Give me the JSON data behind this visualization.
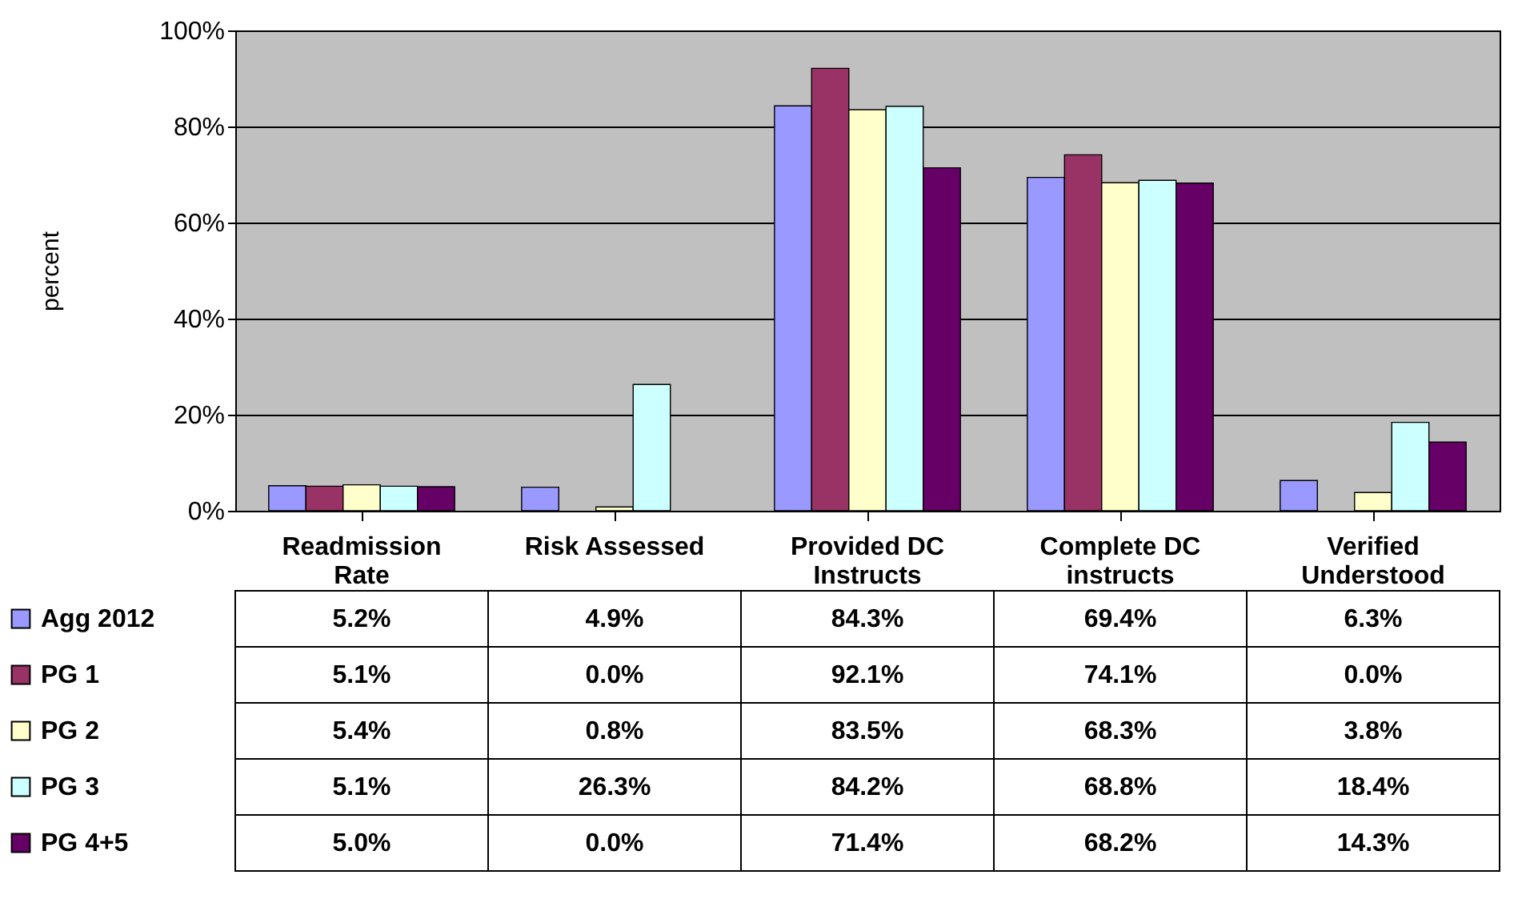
{
  "chart_data": {
    "type": "bar",
    "ylabel": "percent",
    "categories": [
      "Readmission Rate",
      "Risk Assessed",
      "Provided DC Instructs",
      "Complete DC instructs",
      "Verified Understood"
    ],
    "series": [
      {
        "name": "Agg 2012",
        "color": "#9999ff",
        "values": [
          5.2,
          4.9,
          84.3,
          69.4,
          6.3
        ],
        "value_labels": [
          "5.2%",
          "4.9%",
          "84.3%",
          "69.4%",
          "6.3%"
        ]
      },
      {
        "name": "PG 1",
        "color": "#993366",
        "values": [
          5.1,
          0.0,
          92.1,
          74.1,
          0.0
        ],
        "value_labels": [
          "5.1%",
          "0.0%",
          "92.1%",
          "74.1%",
          "0.0%"
        ]
      },
      {
        "name": "PG 2",
        "color": "#ffffcc",
        "values": [
          5.4,
          0.8,
          83.5,
          68.3,
          3.8
        ],
        "value_labels": [
          "5.4%",
          "0.8%",
          "83.5%",
          "68.3%",
          "3.8%"
        ]
      },
      {
        "name": "PG 3",
        "color": "#ccffff",
        "values": [
          5.1,
          26.3,
          84.2,
          68.8,
          18.4
        ],
        "value_labels": [
          "5.1%",
          "26.3%",
          "84.2%",
          "68.8%",
          "18.4%"
        ]
      },
      {
        "name": "PG 4+5",
        "color": "#660066",
        "values": [
          5.0,
          0.0,
          71.4,
          68.2,
          14.3
        ],
        "value_labels": [
          "5.0%",
          "0.0%",
          "71.4%",
          "68.2%",
          "14.3%"
        ]
      }
    ],
    "ylim": [
      0,
      100
    ],
    "yticks": [
      {
        "value": 0,
        "label": "0%"
      },
      {
        "value": 20,
        "label": "20%"
      },
      {
        "value": 40,
        "label": "40%"
      },
      {
        "value": 60,
        "label": "60%"
      },
      {
        "value": 80,
        "label": "80%"
      },
      {
        "value": 100,
        "label": "100%"
      }
    ],
    "grid": "y",
    "legend": "bottom left"
  }
}
